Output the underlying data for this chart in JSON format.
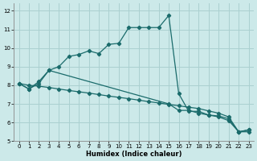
{
  "xlabel": "Humidex (Indice chaleur)",
  "bg_color": "#cce9e9",
  "line_color": "#1a6b6b",
  "grid_color": "#aad0d0",
  "xlim": [
    -0.5,
    23.5
  ],
  "ylim": [
    5.0,
    12.4
  ],
  "xticks": [
    0,
    1,
    2,
    3,
    4,
    5,
    6,
    7,
    8,
    9,
    10,
    11,
    12,
    13,
    14,
    15,
    16,
    17,
    18,
    19,
    20,
    21,
    22,
    23
  ],
  "yticks": [
    5,
    6,
    7,
    8,
    9,
    10,
    11,
    12
  ],
  "curve1_x": [
    0,
    1,
    2,
    3,
    4,
    5,
    6,
    7,
    8,
    9,
    10,
    11,
    12,
    13,
    14,
    15,
    16,
    17,
    18,
    19,
    20,
    21,
    22,
    23
  ],
  "curve1_y": [
    8.1,
    7.8,
    8.2,
    8.8,
    9.0,
    9.55,
    9.65,
    9.85,
    9.7,
    10.2,
    10.25,
    11.1,
    11.1,
    11.1,
    11.1,
    11.75,
    7.55,
    6.6,
    6.6,
    6.4,
    6.35,
    6.2,
    5.5,
    5.5
  ],
  "curve2_x": [
    0,
    1,
    2,
    3,
    15,
    16,
    17,
    18,
    19,
    20,
    21,
    22,
    23
  ],
  "curve2_y": [
    8.1,
    7.8,
    8.1,
    8.8,
    7.0,
    6.65,
    6.65,
    6.5,
    6.4,
    6.3,
    6.1,
    5.5,
    5.6
  ],
  "curve3_x": [
    0,
    1,
    2,
    3,
    4,
    5,
    6,
    7,
    8,
    9,
    10,
    11,
    12,
    13,
    14,
    15,
    16,
    17,
    18,
    19,
    20,
    21,
    22,
    23
  ],
  "curve3_y": [
    8.1,
    8.0,
    7.95,
    7.88,
    7.8,
    7.72,
    7.65,
    7.58,
    7.5,
    7.42,
    7.35,
    7.28,
    7.2,
    7.12,
    7.05,
    6.97,
    6.9,
    6.82,
    6.75,
    6.62,
    6.5,
    6.3,
    5.5,
    5.6
  ]
}
